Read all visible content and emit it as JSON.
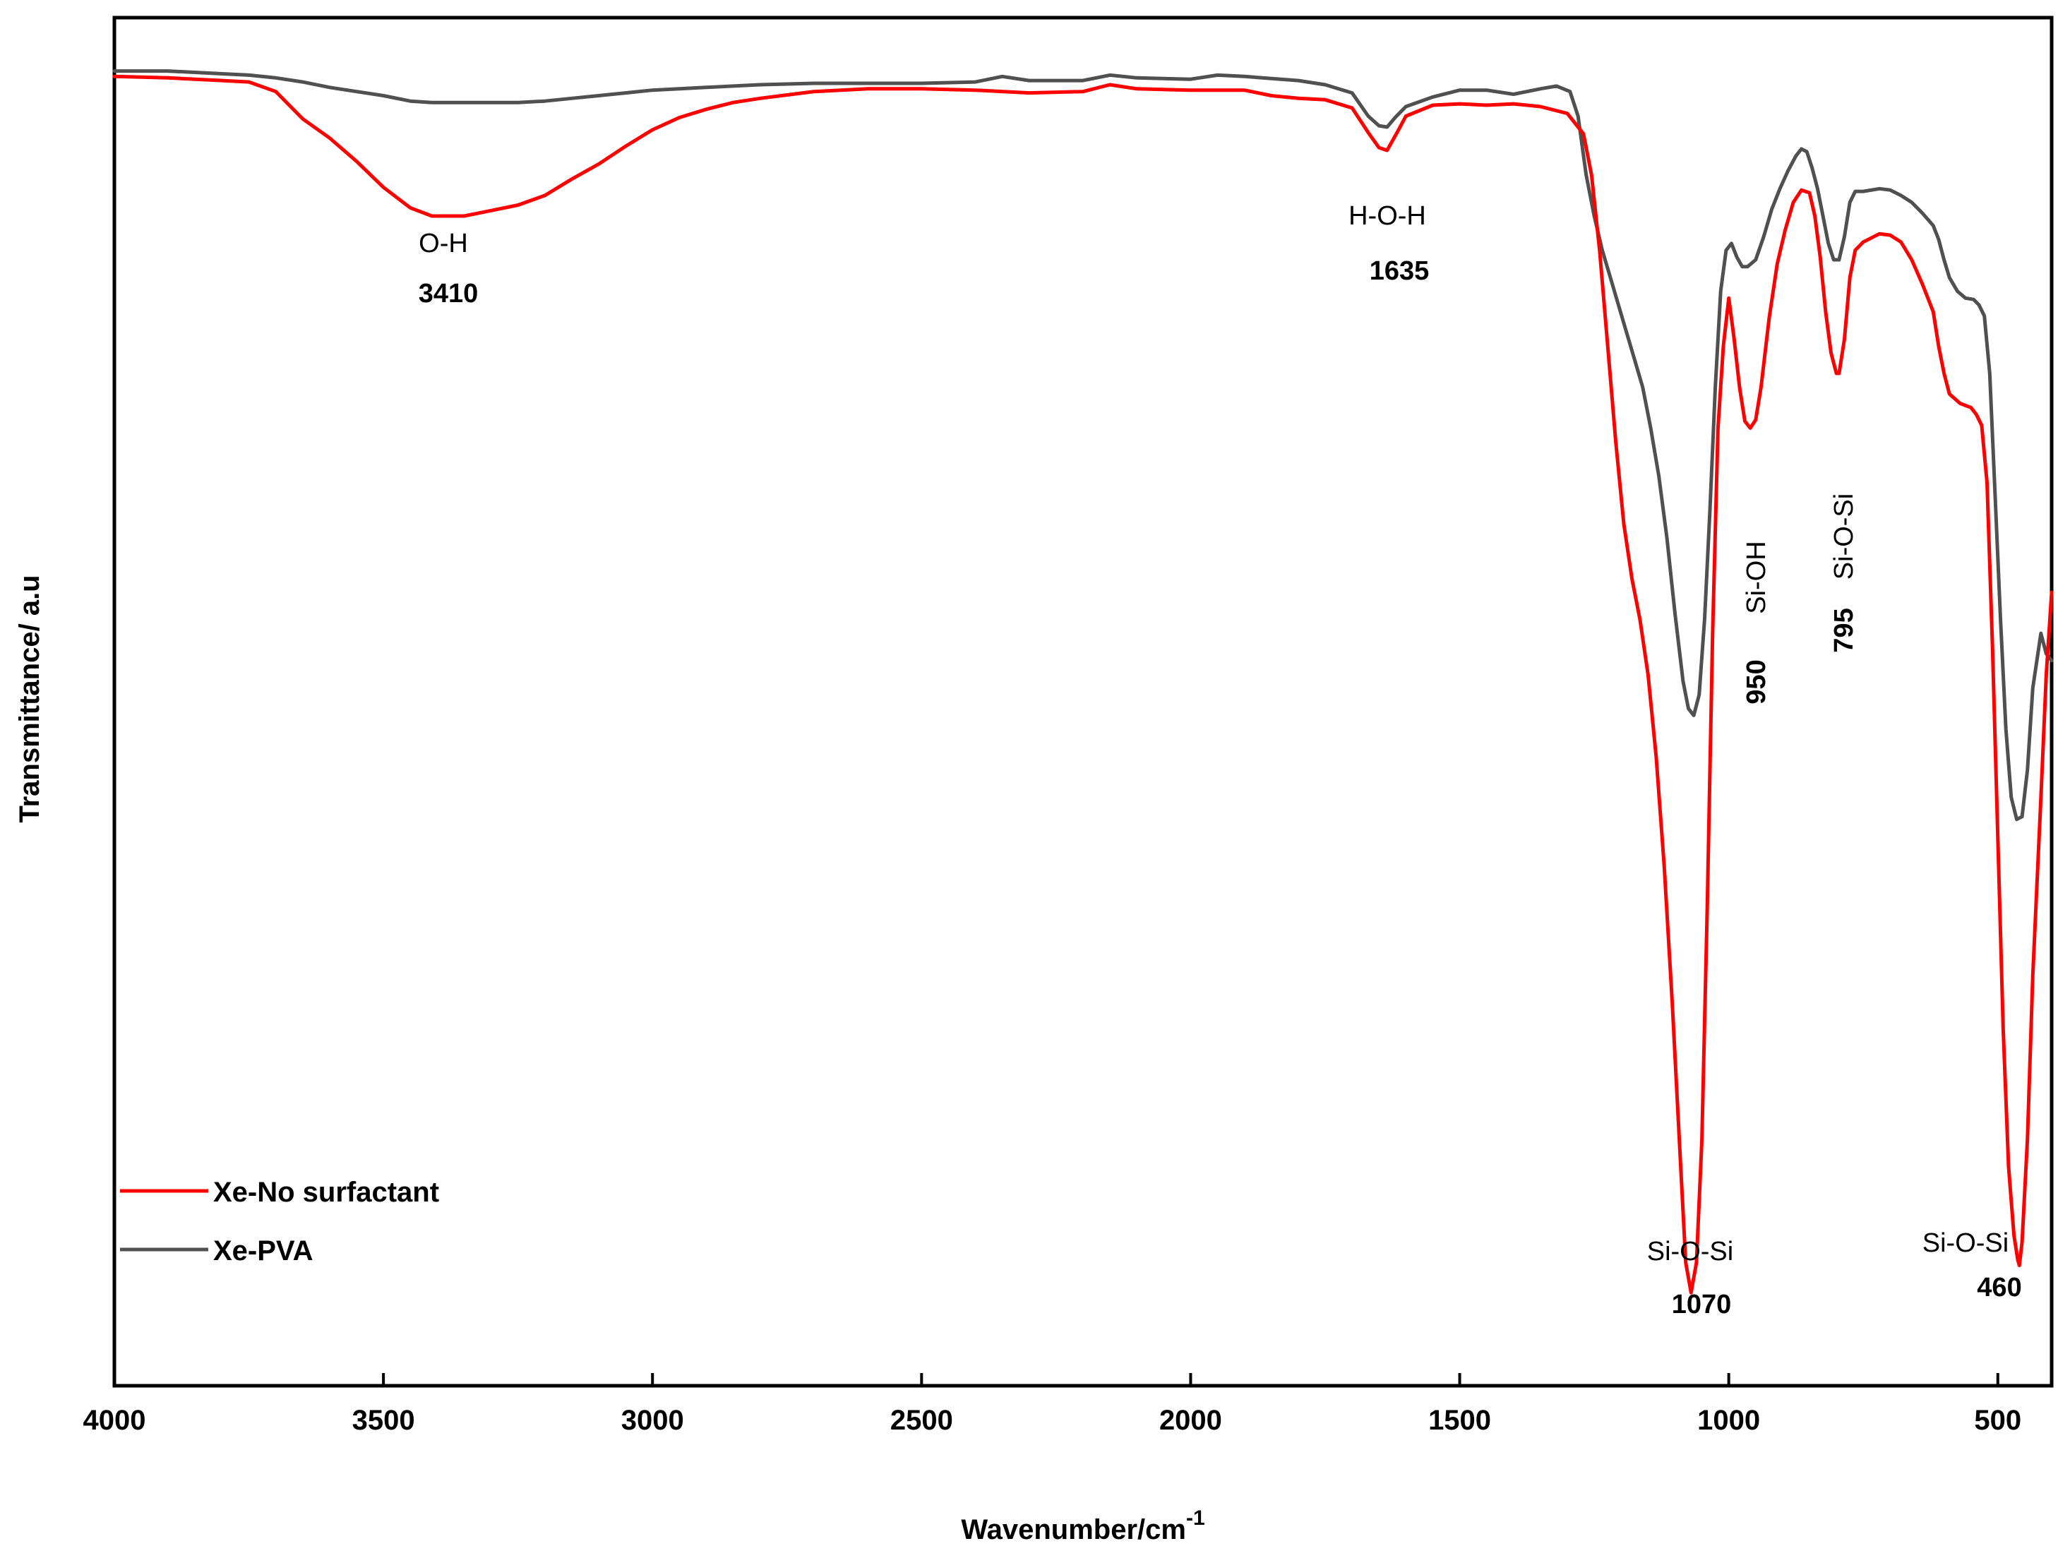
{
  "chart_data": {
    "type": "line",
    "title": "",
    "xlabel": "Wavenumber/cm",
    "xlabel_superscript": "-1",
    "ylabel": "Transmittance/ a.u",
    "xlim": [
      4000,
      400
    ],
    "ylim": [
      0,
      100
    ],
    "x_reversed": true,
    "xticks": [
      4000,
      3500,
      3000,
      2500,
      2000,
      1500,
      1000,
      500
    ],
    "grid": false,
    "legend_position": "bottom-left",
    "series": [
      {
        "name": "Xe-No surfactant",
        "color": "#ff0000",
        "points": [
          [
            4000,
            95.7
          ],
          [
            3900,
            95.6
          ],
          [
            3800,
            95.4
          ],
          [
            3750,
            95.3
          ],
          [
            3700,
            94.6
          ],
          [
            3650,
            92.6
          ],
          [
            3600,
            91.2
          ],
          [
            3550,
            89.5
          ],
          [
            3500,
            87.6
          ],
          [
            3450,
            86.1
          ],
          [
            3410,
            85.5
          ],
          [
            3350,
            85.5
          ],
          [
            3300,
            85.9
          ],
          [
            3250,
            86.3
          ],
          [
            3200,
            87.0
          ],
          [
            3150,
            88.2
          ],
          [
            3100,
            89.3
          ],
          [
            3050,
            90.6
          ],
          [
            3000,
            91.8
          ],
          [
            2950,
            92.7
          ],
          [
            2900,
            93.3
          ],
          [
            2850,
            93.8
          ],
          [
            2800,
            94.1
          ],
          [
            2700,
            94.6
          ],
          [
            2600,
            94.8
          ],
          [
            2500,
            94.8
          ],
          [
            2400,
            94.7
          ],
          [
            2300,
            94.5
          ],
          [
            2200,
            94.6
          ],
          [
            2150,
            95.1
          ],
          [
            2100,
            94.8
          ],
          [
            2000,
            94.7
          ],
          [
            1900,
            94.7
          ],
          [
            1850,
            94.3
          ],
          [
            1800,
            94.1
          ],
          [
            1750,
            94.0
          ],
          [
            1700,
            93.4
          ],
          [
            1670,
            91.6
          ],
          [
            1650,
            90.5
          ],
          [
            1635,
            90.3
          ],
          [
            1615,
            91.7
          ],
          [
            1600,
            92.8
          ],
          [
            1550,
            93.6
          ],
          [
            1500,
            93.7
          ],
          [
            1450,
            93.6
          ],
          [
            1400,
            93.7
          ],
          [
            1350,
            93.5
          ],
          [
            1300,
            93.0
          ],
          [
            1270,
            91.5
          ],
          [
            1255,
            88.5
          ],
          [
            1240,
            83.0
          ],
          [
            1225,
            76.0
          ],
          [
            1210,
            69.0
          ],
          [
            1195,
            63.0
          ],
          [
            1180,
            59.0
          ],
          [
            1165,
            56.0
          ],
          [
            1150,
            52.0
          ],
          [
            1135,
            46.0
          ],
          [
            1120,
            38.0
          ],
          [
            1105,
            28.0
          ],
          [
            1090,
            16.5
          ],
          [
            1080,
            9.0
          ],
          [
            1070,
            6.8
          ],
          [
            1060,
            9.0
          ],
          [
            1050,
            18.0
          ],
          [
            1040,
            35.0
          ],
          [
            1030,
            55.0
          ],
          [
            1020,
            70.0
          ],
          [
            1010,
            76.0
          ],
          [
            1000,
            79.5
          ],
          [
            990,
            76.5
          ],
          [
            980,
            73.0
          ],
          [
            970,
            70.5
          ],
          [
            960,
            70.0
          ],
          [
            950,
            70.6
          ],
          [
            940,
            73.0
          ],
          [
            925,
            78.0
          ],
          [
            910,
            82.0
          ],
          [
            895,
            84.5
          ],
          [
            880,
            86.5
          ],
          [
            865,
            87.4
          ],
          [
            850,
            87.2
          ],
          [
            840,
            85.5
          ],
          [
            830,
            82.5
          ],
          [
            820,
            78.5
          ],
          [
            810,
            75.5
          ],
          [
            800,
            74.0
          ],
          [
            795,
            74.0
          ],
          [
            785,
            76.5
          ],
          [
            775,
            81.0
          ],
          [
            765,
            83.0
          ],
          [
            750,
            83.6
          ],
          [
            720,
            84.2
          ],
          [
            700,
            84.1
          ],
          [
            680,
            83.6
          ],
          [
            660,
            82.3
          ],
          [
            640,
            80.5
          ],
          [
            620,
            78.5
          ],
          [
            610,
            76.0
          ],
          [
            600,
            74.0
          ],
          [
            590,
            72.5
          ],
          [
            570,
            71.8
          ],
          [
            550,
            71.5
          ],
          [
            540,
            71.0
          ],
          [
            530,
            70.2
          ],
          [
            520,
            66.0
          ],
          [
            510,
            54.0
          ],
          [
            500,
            40.0
          ],
          [
            490,
            26.0
          ],
          [
            480,
            16.0
          ],
          [
            470,
            11.0
          ],
          [
            463,
            9.2
          ],
          [
            460,
            8.8
          ],
          [
            455,
            10.5
          ],
          [
            445,
            18.0
          ],
          [
            435,
            30.0
          ],
          [
            420,
            43.0
          ],
          [
            410,
            52.0
          ],
          [
            400,
            58.0
          ]
        ]
      },
      {
        "name": "Xe-PVA",
        "color": "#505050",
        "points": [
          [
            4000,
            96.1
          ],
          [
            3900,
            96.1
          ],
          [
            3800,
            95.9
          ],
          [
            3750,
            95.8
          ],
          [
            3700,
            95.6
          ],
          [
            3650,
            95.3
          ],
          [
            3600,
            94.9
          ],
          [
            3550,
            94.6
          ],
          [
            3500,
            94.3
          ],
          [
            3450,
            93.9
          ],
          [
            3410,
            93.8
          ],
          [
            3350,
            93.8
          ],
          [
            3300,
            93.8
          ],
          [
            3250,
            93.8
          ],
          [
            3200,
            93.9
          ],
          [
            3150,
            94.1
          ],
          [
            3100,
            94.3
          ],
          [
            3050,
            94.5
          ],
          [
            3000,
            94.7
          ],
          [
            2900,
            94.9
          ],
          [
            2800,
            95.1
          ],
          [
            2700,
            95.2
          ],
          [
            2600,
            95.2
          ],
          [
            2500,
            95.2
          ],
          [
            2400,
            95.3
          ],
          [
            2350,
            95.7
          ],
          [
            2300,
            95.4
          ],
          [
            2200,
            95.4
          ],
          [
            2150,
            95.8
          ],
          [
            2100,
            95.6
          ],
          [
            2000,
            95.5
          ],
          [
            1950,
            95.8
          ],
          [
            1900,
            95.7
          ],
          [
            1800,
            95.4
          ],
          [
            1750,
            95.1
          ],
          [
            1700,
            94.5
          ],
          [
            1670,
            92.8
          ],
          [
            1650,
            92.1
          ],
          [
            1635,
            92.0
          ],
          [
            1620,
            92.7
          ],
          [
            1600,
            93.5
          ],
          [
            1550,
            94.2
          ],
          [
            1500,
            94.7
          ],
          [
            1450,
            94.7
          ],
          [
            1400,
            94.4
          ],
          [
            1350,
            94.8
          ],
          [
            1320,
            95.0
          ],
          [
            1295,
            94.6
          ],
          [
            1280,
            92.8
          ],
          [
            1265,
            88.5
          ],
          [
            1250,
            85.5
          ],
          [
            1235,
            83.0
          ],
          [
            1220,
            81.0
          ],
          [
            1205,
            79.0
          ],
          [
            1190,
            77.0
          ],
          [
            1175,
            75.0
          ],
          [
            1160,
            73.0
          ],
          [
            1145,
            70.0
          ],
          [
            1130,
            66.5
          ],
          [
            1115,
            62.0
          ],
          [
            1100,
            56.5
          ],
          [
            1085,
            51.5
          ],
          [
            1075,
            49.5
          ],
          [
            1065,
            49.0
          ],
          [
            1055,
            50.5
          ],
          [
            1045,
            56.0
          ],
          [
            1035,
            64.0
          ],
          [
            1025,
            73.0
          ],
          [
            1015,
            80.0
          ],
          [
            1005,
            83.0
          ],
          [
            995,
            83.5
          ],
          [
            985,
            82.5
          ],
          [
            975,
            81.8
          ],
          [
            965,
            81.8
          ],
          [
            950,
            82.3
          ],
          [
            935,
            84.0
          ],
          [
            920,
            86.0
          ],
          [
            905,
            87.5
          ],
          [
            890,
            88.8
          ],
          [
            875,
            89.9
          ],
          [
            865,
            90.4
          ],
          [
            855,
            90.2
          ],
          [
            845,
            89.0
          ],
          [
            835,
            87.5
          ],
          [
            825,
            85.5
          ],
          [
            815,
            83.5
          ],
          [
            805,
            82.3
          ],
          [
            795,
            82.3
          ],
          [
            785,
            84.0
          ],
          [
            775,
            86.5
          ],
          [
            765,
            87.3
          ],
          [
            750,
            87.3
          ],
          [
            720,
            87.5
          ],
          [
            700,
            87.4
          ],
          [
            680,
            87.0
          ],
          [
            660,
            86.5
          ],
          [
            640,
            85.7
          ],
          [
            620,
            84.8
          ],
          [
            610,
            83.8
          ],
          [
            600,
            82.3
          ],
          [
            590,
            81.0
          ],
          [
            575,
            80.0
          ],
          [
            560,
            79.5
          ],
          [
            545,
            79.4
          ],
          [
            535,
            79.0
          ],
          [
            525,
            78.2
          ],
          [
            515,
            74.0
          ],
          [
            505,
            65.0
          ],
          [
            495,
            56.0
          ],
          [
            485,
            48.0
          ],
          [
            475,
            43.0
          ],
          [
            465,
            41.4
          ],
          [
            455,
            41.6
          ],
          [
            445,
            45.0
          ],
          [
            435,
            51.0
          ],
          [
            420,
            55.0
          ],
          [
            410,
            53.5
          ],
          [
            400,
            53.0
          ]
        ]
      }
    ],
    "annotations": [
      {
        "label": "O-H",
        "value": "3410"
      },
      {
        "label": "H-O-H",
        "value": "1635"
      },
      {
        "label": "Si-OH",
        "value": "950"
      },
      {
        "label": "Si-O-Si",
        "value": "795"
      },
      {
        "label": "Si-O-Si",
        "value": "1070"
      },
      {
        "label": "Si-O-Si",
        "value": "460"
      }
    ]
  }
}
